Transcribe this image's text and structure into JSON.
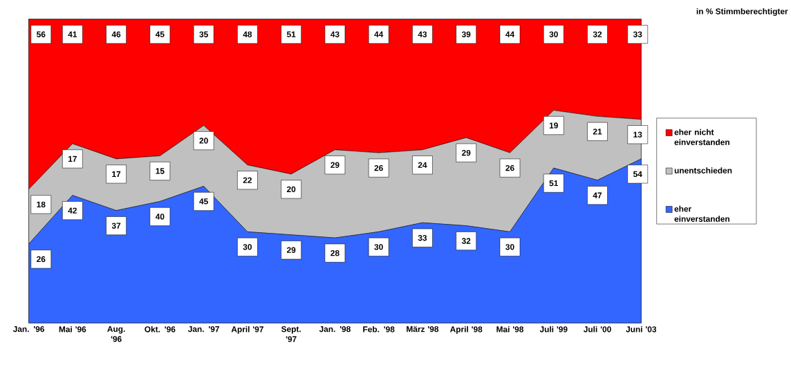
{
  "chart_data": {
    "type": "area",
    "stacked": true,
    "data_labels": true,
    "legend": "right",
    "ylim": [
      0,
      100
    ],
    "annotations": [
      "in % Stimmberechtigter"
    ],
    "categories": [
      "Jan. '96",
      "Mai '96",
      "Aug. '96",
      "Okt. '96",
      "Jan. '97",
      "April '97",
      "Sept. '97",
      "Jan. '98",
      "Feb. '98",
      "März '98",
      "April '98",
      "Mai '98",
      "Juli '99",
      "Juli '00",
      "Juni '03"
    ],
    "series": [
      {
        "name": "eher einverstanden",
        "color": "#3366ff",
        "values": [
          26,
          42,
          37,
          40,
          45,
          30,
          29,
          28,
          30,
          33,
          32,
          30,
          51,
          47,
          54
        ]
      },
      {
        "name": "unentschieden",
        "color": "#c0c0c0",
        "values": [
          18,
          17,
          17,
          15,
          20,
          22,
          20,
          29,
          26,
          24,
          29,
          26,
          19,
          21,
          13
        ]
      },
      {
        "name": "eher nicht einverstanden",
        "color": "#ff0000",
        "values": [
          56,
          41,
          46,
          45,
          35,
          48,
          51,
          43,
          44,
          43,
          39,
          44,
          30,
          32,
          33
        ]
      }
    ]
  }
}
